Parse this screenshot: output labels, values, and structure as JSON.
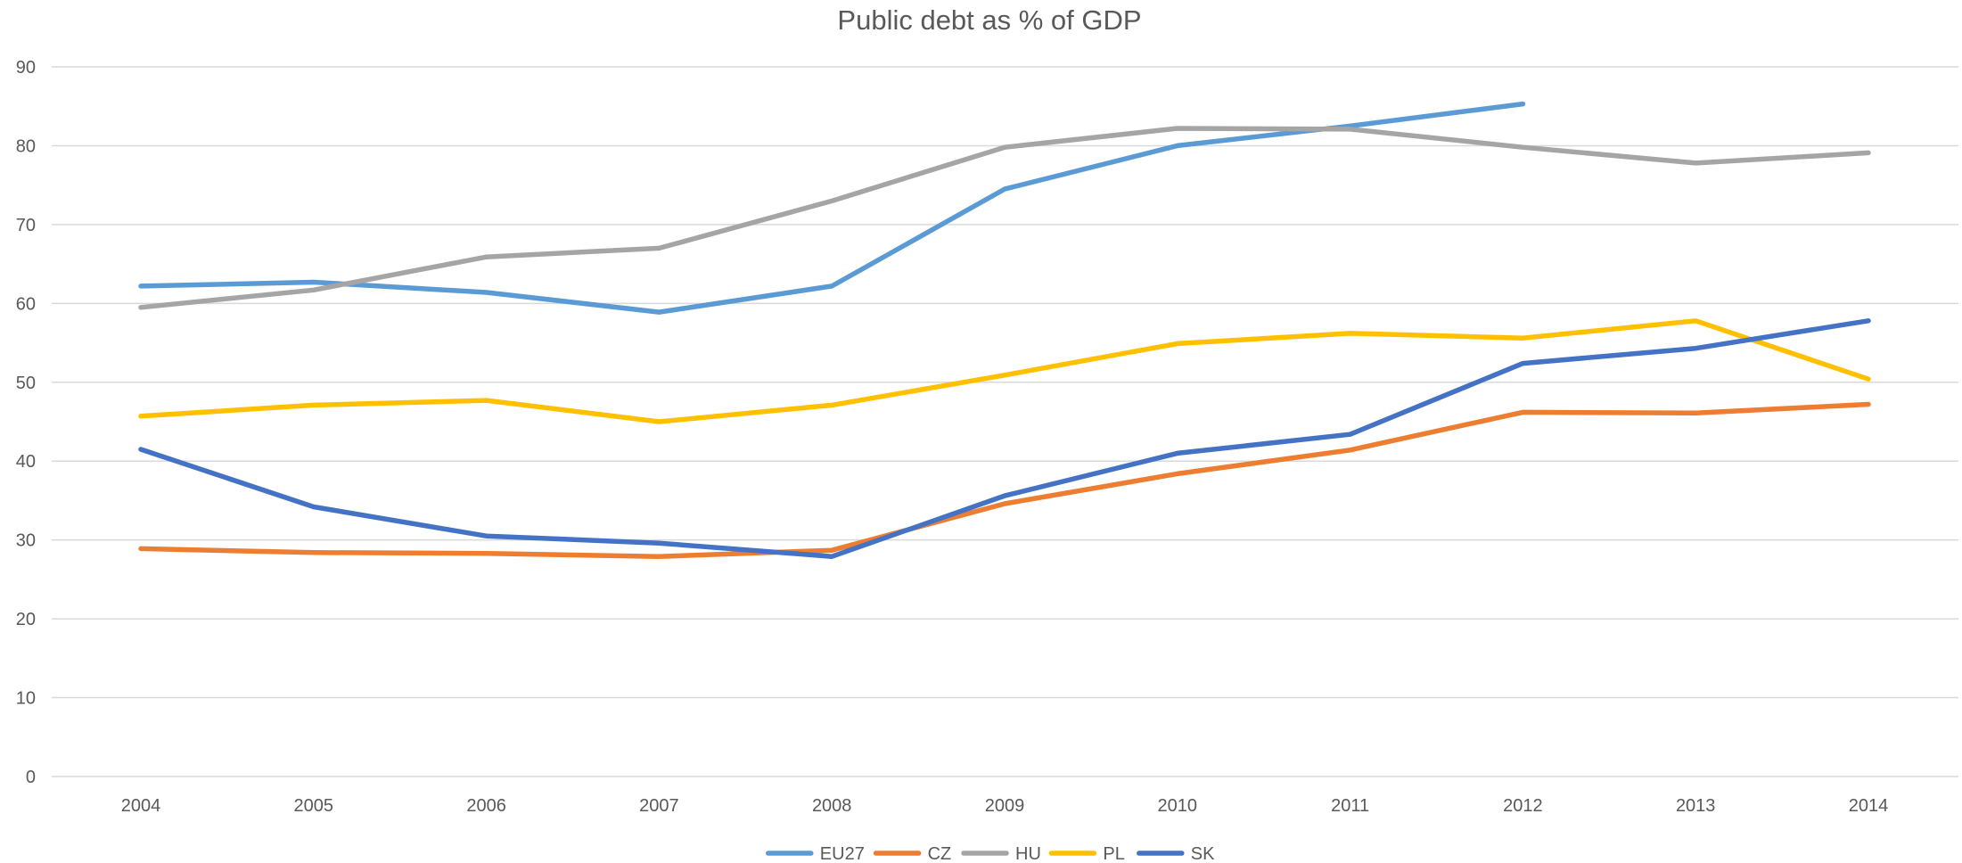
{
  "chart_data": {
    "type": "line",
    "title": "Public debt as % of GDP",
    "xlabel": "",
    "ylabel": "",
    "x": [
      "2004",
      "2005",
      "2006",
      "2007",
      "2008",
      "2009",
      "2010",
      "2011",
      "2012",
      "2013",
      "2014"
    ],
    "ylim": [
      0,
      90
    ],
    "yticks": [
      "0",
      "10",
      "20",
      "30",
      "40",
      "50",
      "60",
      "70",
      "80",
      "90"
    ],
    "grid": true,
    "legend_position": "bottom",
    "series": [
      {
        "name": "EU27",
        "color": "#5B9BD5",
        "values": [
          62.2,
          62.7,
          61.4,
          58.9,
          62.2,
          74.5,
          80.0,
          82.5,
          85.3,
          null,
          null
        ]
      },
      {
        "name": "CZ",
        "color": "#ED7D31",
        "values": [
          28.9,
          28.4,
          28.3,
          27.9,
          28.7,
          34.6,
          38.4,
          41.4,
          46.2,
          46.1,
          47.2
        ]
      },
      {
        "name": "HU",
        "color": "#A5A5A5",
        "values": [
          59.5,
          61.7,
          65.9,
          67.0,
          73.0,
          79.8,
          82.2,
          82.1,
          79.8,
          77.8,
          79.1
        ]
      },
      {
        "name": "PL",
        "color": "#FFC000",
        "values": [
          45.7,
          47.1,
          47.7,
          45.0,
          47.1,
          50.9,
          54.9,
          56.2,
          55.6,
          57.8,
          50.4
        ]
      },
      {
        "name": "SK",
        "color": "#4472C4",
        "values": [
          41.5,
          34.2,
          30.5,
          29.6,
          27.9,
          35.6,
          41.0,
          43.4,
          52.4,
          54.3,
          57.8
        ]
      }
    ]
  }
}
